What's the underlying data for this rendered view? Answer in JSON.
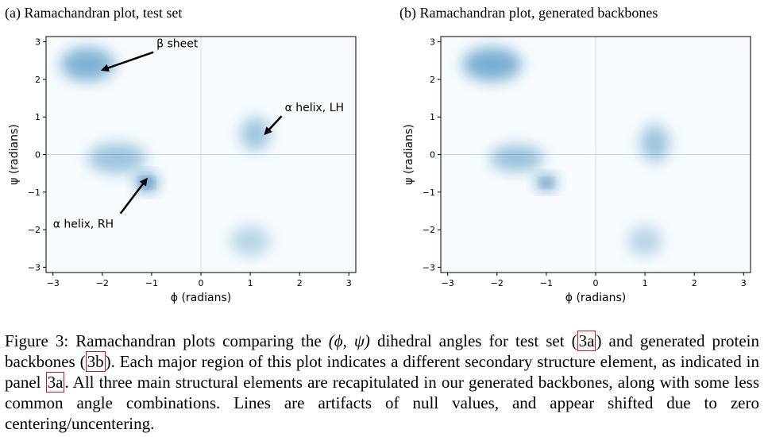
{
  "panels": [
    {
      "title": "(a) Ramachandran plot, test set"
    },
    {
      "title": "(b) Ramachandran plot, generated backbones"
    }
  ],
  "caption": {
    "p1": "Figure 3: Ramachandran plots comparing the ",
    "math": "(ϕ, ψ)",
    "p2": " dihedral angles for test set (",
    "ref1": "3a",
    "p3": ") and generated protein backbones (",
    "ref2": "3b",
    "p4": "). Each major region of this plot indicates a different secondary structure element, as indicated in panel ",
    "ref3": "3a",
    "p5": ". All three main structural elements are recapitulated in our generated backbones, along with some less common angle combinations. Lines are artifacts of null values, and appear shifted due to zero centering/uncentering."
  },
  "chart_data": [
    {
      "type": "heatmap",
      "title": "(a) Ramachandran plot, test set",
      "xlabel": "ϕ (radians)",
      "ylabel": "ψ (radians)",
      "xlim": [
        -3.14,
        3.14
      ],
      "ylim": [
        -3.14,
        3.14
      ],
      "xticks": [
        -3,
        -2,
        -1,
        0,
        1,
        2,
        3
      ],
      "yticks": [
        -3,
        -2,
        -1,
        0,
        1,
        2,
        3
      ],
      "xtick_labels": [
        "−3",
        "−2",
        "−1",
        "0",
        "1",
        "2",
        "3"
      ],
      "ytick_labels": [
        "−3",
        "−2",
        "−1",
        "0",
        "1",
        "2",
        "3"
      ],
      "color": "#1f77b4",
      "regions": [
        {
          "x": -2.3,
          "y": 2.4,
          "sx": 0.55,
          "sy": 0.45,
          "density": 0.55
        },
        {
          "x": -1.1,
          "y": -0.75,
          "sx": 0.22,
          "sy": 0.22,
          "density": 1.0
        },
        {
          "x": -1.7,
          "y": -0.1,
          "sx": 0.6,
          "sy": 0.4,
          "density": 0.3
        },
        {
          "x": 1.1,
          "y": 0.55,
          "sx": 0.3,
          "sy": 0.45,
          "density": 0.3
        },
        {
          "x": 1.0,
          "y": -2.3,
          "sx": 0.4,
          "sy": 0.4,
          "density": 0.08
        }
      ],
      "annotations": [
        {
          "text": "β sheet",
          "xytext": [
            -0.9,
            2.85
          ],
          "xy": [
            -2.0,
            2.25
          ]
        },
        {
          "text": "α helix, LH",
          "xytext": [
            1.7,
            1.15
          ],
          "xy": [
            1.3,
            0.55
          ]
        },
        {
          "text": "α helix, RH",
          "xytext": [
            -3.0,
            -1.95
          ],
          "xy": [
            -1.1,
            -0.65
          ]
        }
      ]
    },
    {
      "type": "heatmap",
      "title": "(b) Ramachandran plot, generated backbones",
      "xlabel": "ϕ (radians)",
      "ylabel": "ψ (radians)",
      "xlim": [
        -3.14,
        3.14
      ],
      "ylim": [
        -3.14,
        3.14
      ],
      "xticks": [
        -3,
        -2,
        -1,
        0,
        1,
        2,
        3
      ],
      "yticks": [
        -3,
        -2,
        -1,
        0,
        1,
        2,
        3
      ],
      "xtick_labels": [
        "−3",
        "−2",
        "−1",
        "0",
        "1",
        "2",
        "3"
      ],
      "ytick_labels": [
        "−3",
        "−2",
        "−1",
        "0",
        "1",
        "2",
        "3"
      ],
      "color": "#1f77b4",
      "regions": [
        {
          "x": -2.1,
          "y": 2.4,
          "sx": 0.6,
          "sy": 0.45,
          "density": 0.6
        },
        {
          "x": -1.0,
          "y": -0.75,
          "sx": 0.2,
          "sy": 0.18,
          "density": 1.0
        },
        {
          "x": -1.6,
          "y": -0.1,
          "sx": 0.55,
          "sy": 0.35,
          "density": 0.35
        },
        {
          "x": 1.2,
          "y": 0.3,
          "sx": 0.3,
          "sy": 0.5,
          "density": 0.3
        },
        {
          "x": 1.0,
          "y": -2.3,
          "sx": 0.35,
          "sy": 0.4,
          "density": 0.07
        }
      ],
      "annotations": []
    }
  ]
}
